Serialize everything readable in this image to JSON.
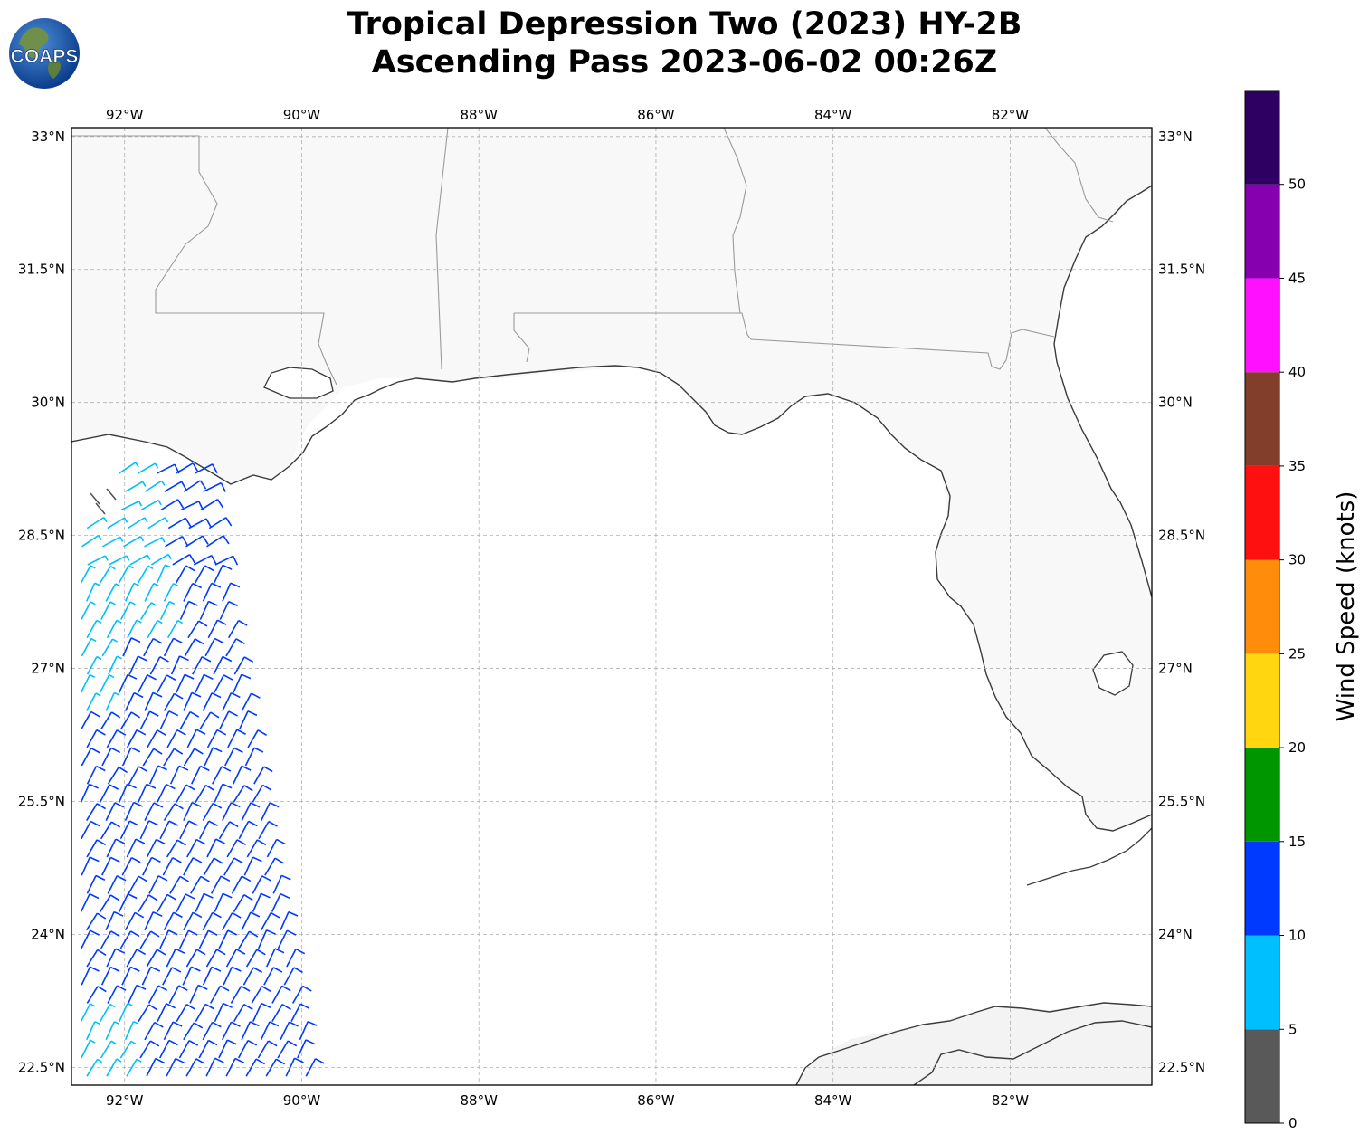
{
  "title": {
    "line1": "Tropical Depression Two (2023) HY-2B",
    "line2": "Ascending Pass 2023-06-02 00:26Z"
  },
  "logo": {
    "text": "COAPS",
    "icon": "globe-logo-icon"
  },
  "map": {
    "lon_range": [
      -92.6,
      -80.4
    ],
    "lat_range": [
      22.3,
      33.1
    ],
    "lon_ticks": [
      {
        "value": -92,
        "label": "92°W"
      },
      {
        "value": -90,
        "label": "90°W"
      },
      {
        "value": -88,
        "label": "88°W"
      },
      {
        "value": -86,
        "label": "86°W"
      },
      {
        "value": -84,
        "label": "84°W"
      },
      {
        "value": -82,
        "label": "82°W"
      }
    ],
    "lat_ticks": [
      {
        "value": 33,
        "label": "33°N"
      },
      {
        "value": 31.5,
        "label": "31.5°N"
      },
      {
        "value": 30,
        "label": "30°N"
      },
      {
        "value": 28.5,
        "label": "28.5°N"
      },
      {
        "value": 27,
        "label": "27°N"
      },
      {
        "value": 25.5,
        "label": "25.5°N"
      },
      {
        "value": 24,
        "label": "24°N"
      },
      {
        "value": 22.5,
        "label": "22.5°N"
      }
    ],
    "grid": true,
    "coast_color": "#3a3a3a",
    "border_color": "#9a9a9a"
  },
  "colorbar": {
    "label": "Wind Speed (knots)",
    "ticks": [
      "0",
      "5",
      "10",
      "15",
      "20",
      "25",
      "30",
      "35",
      "40",
      "45",
      "50"
    ],
    "bins": [
      {
        "min": 0,
        "max": 5,
        "color": "#595959"
      },
      {
        "min": 5,
        "max": 10,
        "color": "#00bfff"
      },
      {
        "min": 10,
        "max": 15,
        "color": "#0039ff"
      },
      {
        "min": 15,
        "max": 20,
        "color": "#009600"
      },
      {
        "min": 20,
        "max": 25,
        "color": "#ffd60f"
      },
      {
        "min": 25,
        "max": 30,
        "color": "#ff8c0a"
      },
      {
        "min": 30,
        "max": 35,
        "color": "#ff1010"
      },
      {
        "min": 35,
        "max": 40,
        "color": "#833d2b"
      },
      {
        "min": 40,
        "max": 45,
        "color": "#ff10ff"
      },
      {
        "min": 45,
        "max": 50,
        "color": "#8600b0"
      },
      {
        "min": 50,
        "max": 55,
        "color": "#2e0061"
      }
    ]
  },
  "wind_swath": {
    "lon_west": -92.6,
    "lon_east_at_north": -91.1,
    "lon_east_at_south": -89.9,
    "lat_north": 29.2,
    "lat_south": 22.4,
    "dominant_speed_kt": [
      5,
      15
    ]
  }
}
